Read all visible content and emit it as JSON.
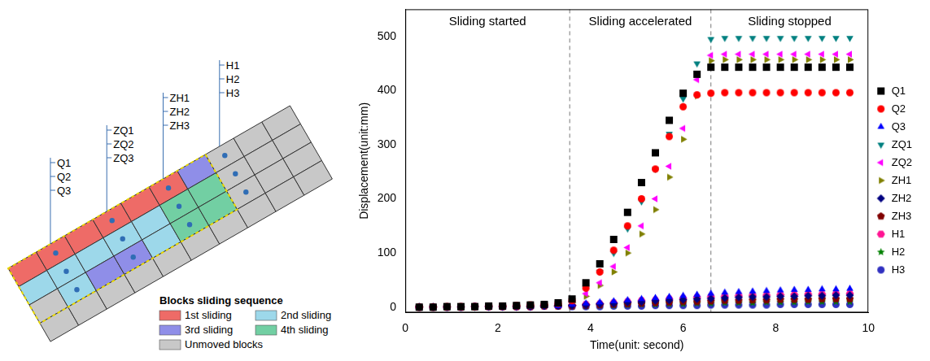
{
  "diagram": {
    "legend_title": "Blocks sliding sequence",
    "legend": [
      {
        "label": "1st sliding",
        "color": "#ee6b67"
      },
      {
        "label": "2nd sliding",
        "color": "#9dd8ea"
      },
      {
        "label": "3rd sliding",
        "color": "#8f8ee8"
      },
      {
        "label": "4th sliding",
        "color": "#72cfa3"
      },
      {
        "label": "Unmoved blocks",
        "color": "#c8c8c8"
      }
    ],
    "point_groups": [
      [
        "Q1",
        "Q2",
        "Q3"
      ],
      [
        "ZQ1",
        "ZQ2",
        "ZQ3"
      ],
      [
        "ZH1",
        "ZH2",
        "ZH3"
      ],
      [
        "H1",
        "H2",
        "H3"
      ]
    ]
  },
  "chart_data": {
    "type": "scatter",
    "x_label": "Time(unit: second)",
    "y_label": "Displacement(unit:mm)",
    "annotations": [
      "Sliding started",
      "Sliding accelerated",
      "Sliding stopped"
    ],
    "phase_boundaries": [
      3.55,
      6.6
    ],
    "xlim": [
      0,
      10
    ],
    "xticks": [
      0,
      2,
      4,
      6,
      8,
      10
    ],
    "ylim": [
      -10,
      550
    ],
    "yticks": [
      0,
      100,
      200,
      300,
      400,
      500
    ],
    "grid": false,
    "legend": "right",
    "x": [
      0.3,
      0.6,
      0.9,
      1.2,
      1.5,
      1.8,
      2.1,
      2.4,
      2.7,
      3.0,
      3.3,
      3.6,
      3.9,
      4.2,
      4.5,
      4.8,
      5.1,
      5.4,
      5.7,
      6.0,
      6.3,
      6.6,
      6.9,
      7.2,
      7.5,
      7.8,
      8.1,
      8.4,
      8.7,
      9.0,
      9.3,
      9.6
    ],
    "series": [
      {
        "name": "Q1",
        "color": "#000000",
        "marker": "square",
        "values": [
          0,
          0,
          1,
          1,
          1,
          2,
          2,
          3,
          4,
          5,
          8,
          15,
          45,
          80,
          125,
          175,
          230,
          285,
          345,
          395,
          430,
          443,
          443,
          443,
          443,
          443,
          443,
          443,
          443,
          443,
          443,
          443
        ]
      },
      {
        "name": "Q2",
        "color": "#ff0000",
        "marker": "circle",
        "values": [
          0,
          0,
          1,
          1,
          1,
          2,
          2,
          3,
          4,
          5,
          7,
          12,
          35,
          65,
          105,
          150,
          200,
          255,
          315,
          370,
          392,
          395,
          396,
          396,
          396,
          396,
          396,
          396,
          396,
          396,
          396,
          396
        ]
      },
      {
        "name": "Q3",
        "color": "#0000ff",
        "marker": "triangle-up",
        "values": [
          0,
          0,
          0,
          0,
          1,
          1,
          1,
          1,
          1,
          2,
          2,
          5,
          7,
          9,
          11,
          13,
          15,
          17,
          19,
          21,
          23,
          25,
          27,
          28,
          29,
          30,
          31,
          32,
          32,
          33,
          33,
          34
        ]
      },
      {
        "name": "ZQ1",
        "color": "#008080",
        "marker": "triangle-down",
        "values": [
          0,
          0,
          1,
          1,
          1,
          2,
          2,
          3,
          4,
          5,
          7,
          13,
          35,
          65,
          100,
          145,
          195,
          255,
          320,
          385,
          450,
          495,
          497,
          497,
          497,
          497,
          497,
          497,
          497,
          497,
          497,
          497
        ]
      },
      {
        "name": "ZQ2",
        "color": "#ff00ff",
        "marker": "triangle-left",
        "values": [
          0,
          0,
          1,
          1,
          1,
          2,
          2,
          3,
          4,
          5,
          6,
          10,
          25,
          45,
          75,
          110,
          150,
          200,
          260,
          330,
          420,
          465,
          467,
          467,
          467,
          467,
          467,
          467,
          467,
          467,
          467,
          467
        ]
      },
      {
        "name": "ZH1",
        "color": "#808000",
        "marker": "triangle-right",
        "values": [
          0,
          0,
          1,
          1,
          1,
          2,
          2,
          3,
          4,
          5,
          6,
          8,
          20,
          40,
          65,
          100,
          135,
          180,
          240,
          310,
          390,
          455,
          457,
          457,
          457,
          457,
          457,
          457,
          457,
          457,
          457,
          457
        ]
      },
      {
        "name": "ZH2",
        "color": "#000080",
        "marker": "diamond",
        "values": [
          0,
          0,
          0,
          0,
          1,
          1,
          1,
          1,
          1,
          2,
          2,
          3,
          4,
          6,
          7,
          9,
          10,
          12,
          13,
          14,
          15,
          16,
          17,
          18,
          19,
          19,
          20,
          20,
          21,
          21,
          22,
          22
        ]
      },
      {
        "name": "ZH3",
        "color": "#800000",
        "marker": "pentagon",
        "values": [
          0,
          0,
          0,
          0,
          1,
          1,
          1,
          1,
          1,
          2,
          2,
          2,
          3,
          4,
          5,
          6,
          7,
          8,
          9,
          10,
          10,
          11,
          12,
          12,
          13,
          13,
          14,
          14,
          14,
          15,
          15,
          15
        ]
      },
      {
        "name": "H1",
        "color": "#ff1493",
        "marker": "hexagon",
        "values": [
          0,
          0,
          0,
          0,
          1,
          1,
          1,
          1,
          1,
          2,
          2,
          3,
          5,
          6,
          8,
          10,
          12,
          13,
          15,
          16,
          18,
          19,
          20,
          21,
          22,
          22,
          23,
          23,
          24,
          24,
          25,
          25
        ]
      },
      {
        "name": "H2",
        "color": "#008000",
        "marker": "star",
        "values": [
          0,
          0,
          0,
          0,
          1,
          1,
          1,
          1,
          1,
          2,
          2,
          1,
          2,
          3,
          3,
          4,
          5,
          5,
          6,
          6,
          7,
          7,
          8,
          8,
          8,
          9,
          9,
          9,
          10,
          10,
          10,
          10
        ]
      },
      {
        "name": "H3",
        "color": "#3030c0",
        "marker": "circle",
        "values": [
          0,
          0,
          0,
          0,
          1,
          1,
          1,
          1,
          1,
          2,
          2,
          1,
          1,
          1,
          2,
          2,
          2,
          3,
          3,
          3,
          3,
          4,
          4,
          4,
          4,
          4,
          5,
          5,
          5,
          5,
          5,
          5
        ]
      }
    ]
  }
}
